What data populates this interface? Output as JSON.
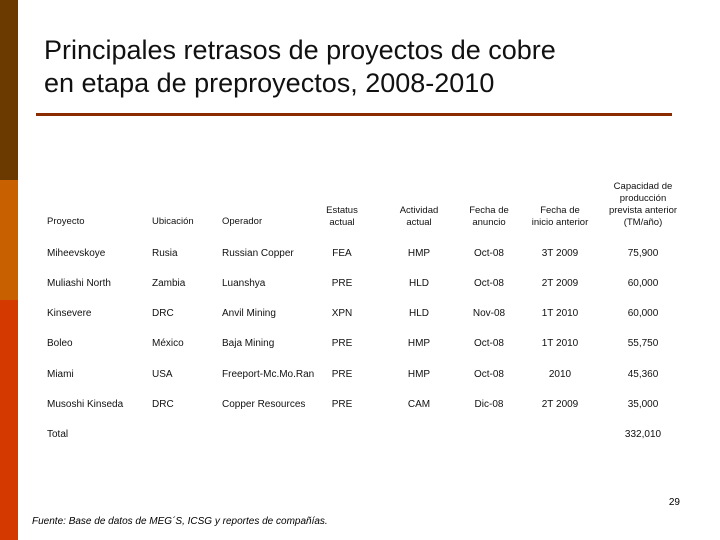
{
  "slide": {
    "title_line1": "Principales retrasos de proyectos de cobre",
    "title_line2": "en etapa de preproyectos, 2008-2010",
    "page_number": "29",
    "footnote": "Fuente: Base de datos de MEG´S, ICSG y reportes de compañías."
  },
  "table": {
    "headers": {
      "proyecto": "Proyecto",
      "ubicacion": "Ubicación",
      "operador": "Operador",
      "estatus_l1": "Estatus",
      "estatus_l2": "actual",
      "actividad_l1": "Actividad",
      "actividad_l2": "actual",
      "fecha_anuncio_l1": "Fecha de",
      "fecha_anuncio_l2": "anuncio",
      "fecha_inicio_l1": "Fecha de",
      "fecha_inicio_l2": "inicio anterior",
      "capacidad_l1": "Capacidad de",
      "capacidad_l2": "producción",
      "capacidad_l3": "prevista anterior",
      "capacidad_l4": "(TM/año)"
    },
    "rows": [
      {
        "proyecto": "Miheevskoye",
        "ubicacion": "Rusia",
        "operador": "Russian Copper",
        "estatus": "FEA",
        "actividad": "HMP",
        "anuncio": "Oct-08",
        "inicio": "3T 2009",
        "capacidad": "75,900"
      },
      {
        "proyecto": "Muliashi North",
        "ubicacion": "Zambia",
        "operador": "Luanshya",
        "estatus": "PRE",
        "actividad": "HLD",
        "anuncio": "Oct-08",
        "inicio": "2T 2009",
        "capacidad": "60,000"
      },
      {
        "proyecto": "Kinsevere",
        "ubicacion": "DRC",
        "operador": "Anvil Mining",
        "estatus": "XPN",
        "actividad": "HLD",
        "anuncio": "Nov-08",
        "inicio": "1T 2010",
        "capacidad": "60,000"
      },
      {
        "proyecto": "Boleo",
        "ubicacion": "México",
        "operador": "Baja Mining",
        "estatus": "PRE",
        "actividad": "HMP",
        "anuncio": "Oct-08",
        "inicio": "1T 2010",
        "capacidad": "55,750"
      },
      {
        "proyecto": "Miami",
        "ubicacion": "USA",
        "operador": "Freeport-Mc.Mo.Ran",
        "estatus": "PRE",
        "actividad": "HMP",
        "anuncio": "Oct-08",
        "inicio": "2010",
        "capacidad": "45,360"
      },
      {
        "proyecto": "Musoshi Kinseda",
        "ubicacion": "DRC",
        "operador": "Copper Resources",
        "estatus": "PRE",
        "actividad": "CAM",
        "anuncio": "Dic-08",
        "inicio": "2T 2009",
        "capacidad": "35,000"
      }
    ],
    "total_label": "Total",
    "total_value": "332,010"
  },
  "colors": {
    "sidebar_top": "#6b3a00",
    "sidebar_mid": "#c86000",
    "sidebar_bottom": "#d43a00",
    "title_rule": "#8a2b00"
  }
}
